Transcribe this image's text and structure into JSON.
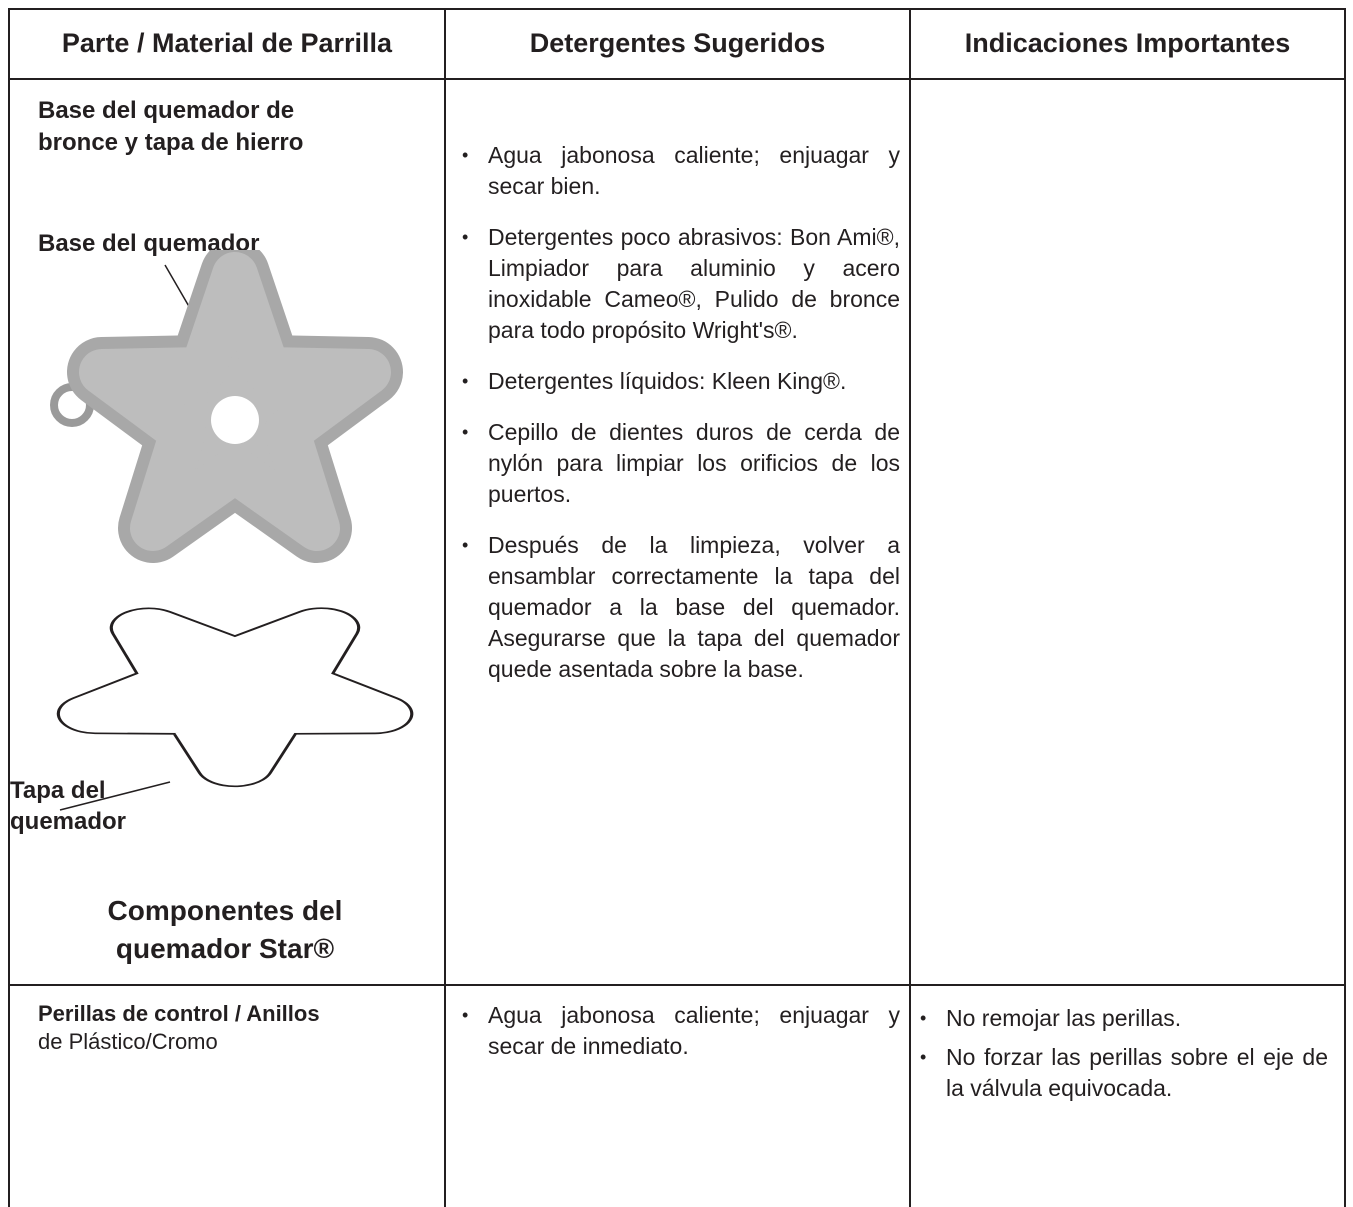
{
  "table": {
    "headers": [
      "Parte / Material de Parrilla",
      "Detergentes Sugeridos",
      "Indicaciones Importantes"
    ],
    "rows": [
      {
        "part": {
          "title": "Base del quemador de bronce y tapa de hierro",
          "labels": [
            "Base del quemador",
            "Tapa del quemador"
          ],
          "caption": "Componentes del quemador Star®"
        },
        "detergents": [
          "Agua jabonosa caliente; enjuagar y secar bien.",
          "Detergentes poco abrasivos: Bon Ami®, Limpiador para aluminio y acero inoxidable Cameo®, Pulido de bronce para todo propósito Wright's®.",
          "Detergentes líquidos: Kleen King®.",
          "Cepillo de dientes duros de cerda de nylón para limpiar los orificios de los puertos.",
          "Después de la limpieza, volver a ensamblar correctamente la tapa del quemador a la base del quemador. Asegurarse que la tapa del quemador quede asentada sobre la base."
        ]
      },
      {
        "part": {
          "title": "Perillas de control / Anillos",
          "subtitle": "de Plástico/Cromo"
        },
        "detergents": [
          "Agua jabonosa caliente; enjuagar y secar de inmediato."
        ],
        "notes": [
          "No remojar las perillas.",
          "No forzar las perillas sobre el eje de la válvula equivocada."
        ]
      }
    ]
  }
}
